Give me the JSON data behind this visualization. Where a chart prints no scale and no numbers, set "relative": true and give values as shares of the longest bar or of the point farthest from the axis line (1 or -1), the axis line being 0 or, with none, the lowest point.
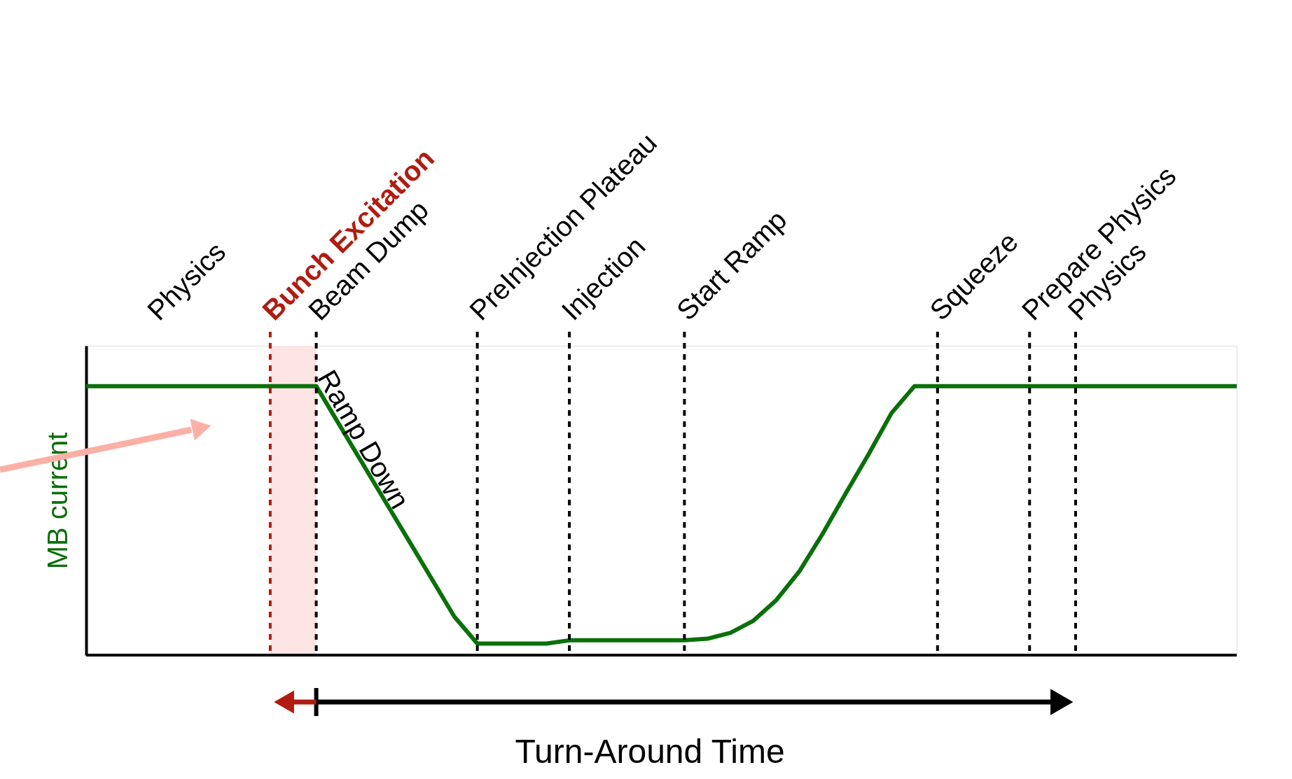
{
  "chart_data": {
    "type": "line",
    "relative": true,
    "grid": "x",
    "ylabel": "MB current",
    "categories": [
      null,
      null,
      null,
      null,
      null,
      null,
      null,
      null,
      null,
      null,
      null,
      null,
      null,
      null,
      null,
      null,
      null,
      null,
      null,
      null,
      null,
      null,
      null,
      null,
      null,
      null,
      null,
      null,
      null,
      null,
      null,
      null,
      null,
      null,
      null,
      null,
      null,
      null,
      null,
      null,
      null,
      null,
      null,
      null,
      null,
      null,
      null,
      null,
      null,
      null,
      null
    ],
    "series": [
      {
        "color": "#0a700a",
        "values": [
          1.0,
          1.0,
          1.0,
          1.0,
          1.0,
          1.0,
          1.0,
          1.0,
          1.0,
          1.0,
          1.0,
          0.857,
          0.714,
          0.571,
          0.429,
          0.286,
          0.143,
          0.043,
          0.043,
          0.043,
          0.043,
          0.055,
          0.055,
          0.055,
          0.055,
          0.055,
          0.055,
          0.061,
          0.083,
          0.128,
          0.205,
          0.312,
          0.45,
          0.6,
          0.746,
          0.9,
          1.0,
          1.0,
          1.0,
          1.0,
          1.0,
          1.0,
          1.0,
          1.0,
          1.0,
          1.0,
          1.0,
          1.0,
          1.0,
          1.0,
          1.0
        ]
      }
    ],
    "annotations": [
      "Physics",
      "Bunch Excitation",
      "Beam Dump",
      "PreInjection Plateau",
      "Injection",
      "Start Ramp",
      "Squeeze",
      "Prepare Physics",
      "Physics",
      "Ramp Down",
      "Turn-Around Time"
    ]
  }
}
